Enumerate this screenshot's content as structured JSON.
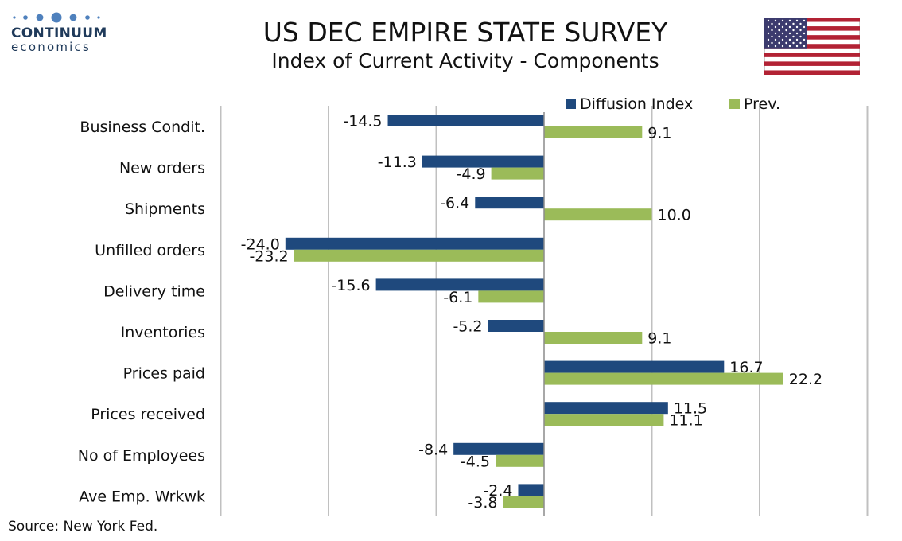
{
  "logo": {
    "name": "CONTINUUM",
    "sub": "economics"
  },
  "title": "US DEC EMPIRE STATE SURVEY",
  "subtitle": "Index of Current Activity - Components",
  "source": "Source: New York Fed.",
  "flag_icon": "us-flag-icon",
  "colors": {
    "series1": "#1f497d",
    "series2": "#9bbb59",
    "grid": "#c0c0c0",
    "logo_dots": "#4f81bd"
  },
  "chart_data": {
    "type": "bar",
    "orientation": "horizontal",
    "categories": [
      "Business Condit.",
      "New orders ",
      "Shipments ",
      "Unfilled orders",
      "Delivery time",
      "Inventories",
      "Prices paid",
      "Prices received",
      "No of Employees",
      "Ave Emp. Wrkwk"
    ],
    "series": [
      {
        "name": "Diffusion Index",
        "values": [
          -14.5,
          -11.3,
          -6.4,
          -24.0,
          -15.6,
          -5.2,
          16.7,
          11.5,
          -8.4,
          -2.4
        ]
      },
      {
        "name": "Prev.",
        "values": [
          9.1,
          -4.9,
          10.0,
          -23.2,
          -6.1,
          9.1,
          22.2,
          11.1,
          -4.5,
          -3.8
        ]
      }
    ],
    "xlim": [
      -30,
      30
    ],
    "grid": true,
    "legend_position": "top-right"
  }
}
